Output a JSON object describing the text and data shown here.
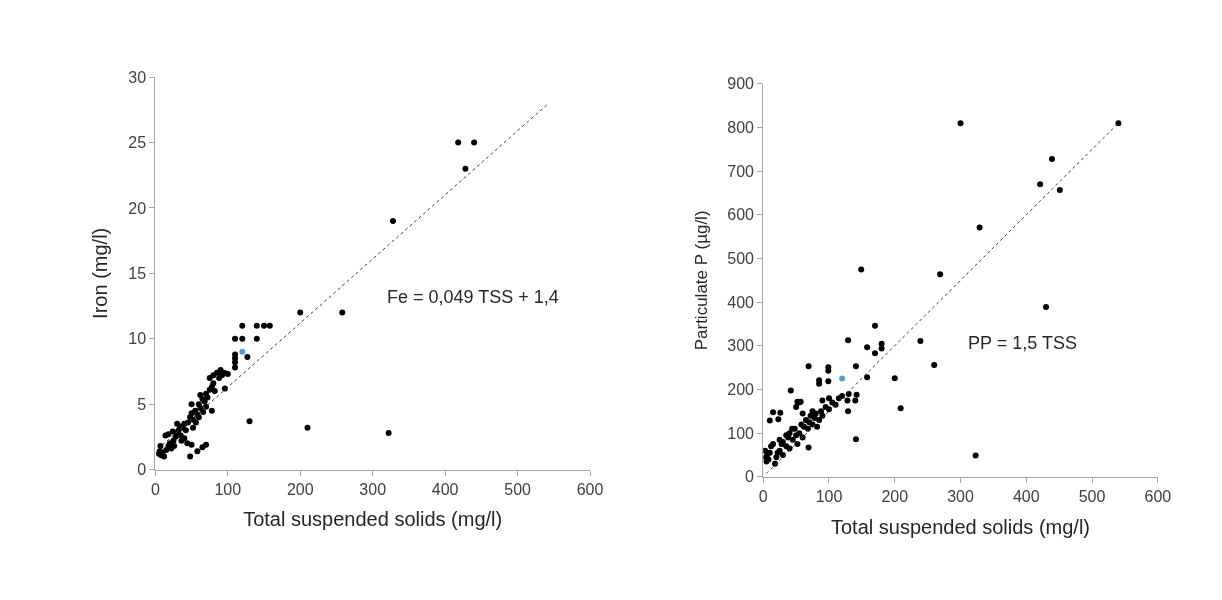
{
  "chart_data": [
    {
      "type": "scatter",
      "xlabel": "Total suspended solids (mg/l)",
      "ylabel": "Iron (mg/l)",
      "xlim": [
        0,
        600
      ],
      "ylim": [
        0,
        30
      ],
      "xticks": [
        0,
        100,
        200,
        300,
        400,
        500,
        600
      ],
      "yticks": [
        0,
        5,
        10,
        15,
        20,
        25,
        30
      ],
      "marker": "circle",
      "series": [
        {
          "color": "#000000",
          "x": [
            5,
            6,
            8,
            10,
            12,
            7,
            15,
            18,
            20,
            22,
            25,
            28,
            14,
            18,
            26,
            30,
            32,
            35,
            34,
            38,
            40,
            30,
            42,
            45,
            36,
            40,
            48,
            50,
            52,
            55,
            58,
            50,
            60,
            62,
            65,
            68,
            70,
            72,
            75,
            78,
            80,
            82,
            75,
            80,
            85,
            88,
            90,
            95,
            100,
            92,
            60,
            66,
            70,
            78,
            44,
            50,
            65,
            70,
            58,
            48,
            110,
            110,
            110,
            110,
            127,
            96,
            52,
            24,
            56,
            62,
            418,
            440,
            428,
            328,
            200,
            258,
            120,
            140,
            150,
            158,
            110,
            120,
            140,
            210,
            322,
            130
          ],
          "values": [
            1.2,
            1.4,
            1.1,
            1.3,
            1.0,
            1.8,
            1.5,
            1.8,
            2.0,
            1.6,
            2.2,
            2.5,
            2.6,
            2.7,
            1.8,
            2.8,
            3.0,
            2.6,
            3.3,
            3.2,
            3.5,
            3.5,
            3.0,
            3.6,
            2.2,
            2.4,
            4.0,
            4.3,
            3.8,
            4.5,
            4.2,
            5.0,
            5.0,
            4.7,
            5.4,
            5.2,
            5.8,
            5.5,
            6.1,
            6.3,
            6.6,
            6.0,
            7.0,
            7.2,
            7.4,
            7.0,
            7.6,
            7.4,
            7.3,
            7.2,
            4.0,
            4.4,
            4.8,
            4.5,
            2.0,
            1.9,
            1.7,
            1.9,
            1.4,
            1.0,
            8.8,
            8.5,
            8.2,
            7.8,
            8.6,
            6.2,
            3.2,
            2.9,
            3.6,
            5.7,
            25,
            25,
            23,
            19,
            12,
            12,
            11,
            11,
            11,
            11,
            10,
            10,
            10,
            3.2,
            2.8,
            3.7
          ]
        },
        {
          "color": "#5b9bd5",
          "x": [
            120
          ],
          "values": [
            9
          ]
        },
        {
          "type": "line",
          "color": "#404040",
          "line_style": "dotted",
          "marker": "none",
          "x": [
            10,
            540
          ],
          "values": [
            1.89,
            27.86
          ]
        }
      ],
      "annotations": [
        "Fe = 0,049 TSS + 1,4"
      ]
    },
    {
      "type": "scatter",
      "xlabel": "Total suspended solids (mg/l)",
      "ylabel": "Particulate P (µg/l)",
      "xlim": [
        0,
        600
      ],
      "ylim": [
        0,
        900
      ],
      "xticks": [
        0,
        100,
        200,
        300,
        400,
        500,
        600
      ],
      "yticks": [
        0,
        100,
        200,
        300,
        400,
        500,
        600,
        700,
        800,
        900
      ],
      "marker": "circle",
      "series": [
        {
          "color": "#000000",
          "x": [
            3,
            4,
            5,
            6,
            8,
            10,
            12,
            15,
            18,
            20,
            22,
            25,
            28,
            30,
            30,
            35,
            38,
            40,
            40,
            45,
            48,
            50,
            52,
            55,
            58,
            60,
            62,
            65,
            68,
            70,
            72,
            75,
            78,
            80,
            82,
            85,
            88,
            90,
            95,
            100,
            105,
            110,
            115,
            120,
            128,
            130,
            50,
            55,
            44,
            35,
            25,
            60,
            75,
            90,
            100,
            140,
            142,
            300,
            540,
            439,
            421,
            451,
            329,
            149,
            269,
            430,
            170,
            129,
            239,
            158,
            180,
            180,
            170,
            69,
            141,
            260,
            99,
            99,
            85,
            85,
            99,
            158,
            200,
            209,
            141,
            323,
            42,
            52,
            57,
            129,
            10,
            15,
            23,
            26,
            69
          ],
          "values": [
            60,
            45,
            35,
            50,
            40,
            55,
            70,
            75,
            30,
            45,
            55,
            60,
            75,
            80,
            50,
            70,
            90,
            65,
            100,
            85,
            110,
            95,
            75,
            100,
            120,
            90,
            115,
            130,
            110,
            125,
            140,
            120,
            135,
            145,
            115,
            130,
            150,
            140,
            160,
            155,
            170,
            165,
            180,
            185,
            175,
            190,
            160,
            170,
            110,
            95,
            85,
            145,
            150,
            175,
            180,
            175,
            188,
            810,
            810,
            728,
            670,
            657,
            571,
            475,
            464,
            389,
            346,
            313,
            311,
            297,
            305,
            294,
            283,
            253,
            253,
            256,
            251,
            243,
            221,
            213,
            219,
            228,
            226,
            157,
            86,
            49,
            198,
            172,
            172,
            150,
            129,
            148,
            132,
            147,
            67
          ]
        },
        {
          "color": "#5b9bd5",
          "x": [
            120
          ],
          "values": [
            225
          ]
        },
        {
          "type": "line",
          "color": "#404040",
          "line_style": "dotted",
          "marker": "none",
          "x": [
            5,
            540
          ],
          "values": [
            8,
            810
          ]
        }
      ],
      "annotations": [
        "PP = 1,5 TSS"
      ]
    }
  ]
}
